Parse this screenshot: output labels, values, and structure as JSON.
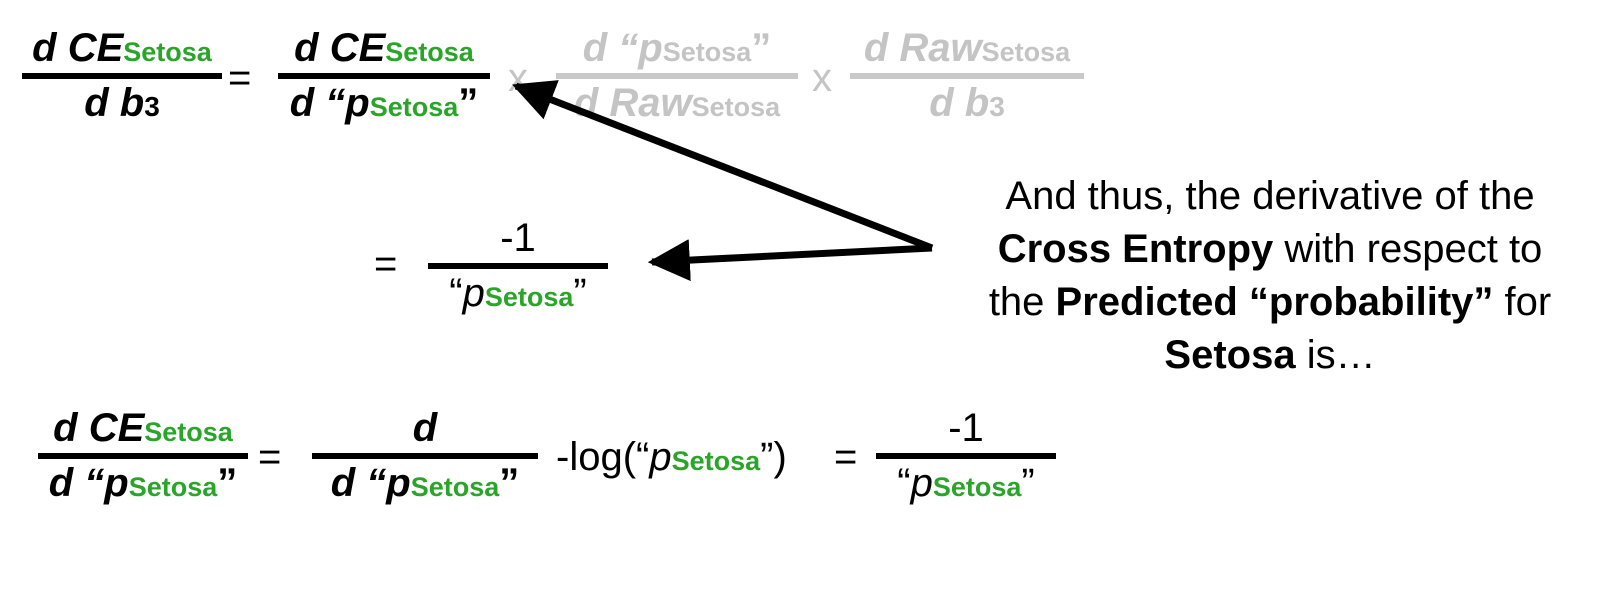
{
  "top_equation": {
    "lhs_num": "d CE",
    "lhs_num_sub": "Setosa",
    "lhs_den": "d b",
    "lhs_den_sub": "3",
    "equals": "=",
    "t1_num": "d CE",
    "t1_num_sub": "Setosa",
    "t1_den_pre": "d “",
    "t1_den_p": "p",
    "t1_den_sub": "Setosa",
    "t1_den_post": "”",
    "times1": "x",
    "t2_num_pre": "d “",
    "t2_num_p": "p",
    "t2_num_sub": "Setosa",
    "t2_num_post": "”",
    "t2_den": "d Raw",
    "t2_den_sub": "Setosa",
    "times2": "x",
    "t3_num": "d Raw",
    "t3_num_sub": "Setosa",
    "t3_den": "d b",
    "t3_den_sub": "3"
  },
  "middle_result": {
    "equals": "=",
    "num": "-1",
    "den_pre": "“",
    "den_p": "p",
    "den_sub": "Setosa",
    "den_post": "”"
  },
  "explanation": {
    "line1": "And thus, the derivative of the",
    "line2_bold": "Cross Entropy",
    "line2_rest": " with respect to",
    "line3_start": "the ",
    "line3_bold": "Predicted “probability”",
    "line3_end": " for",
    "line4_bold": "Setosa",
    "line4_rest": " is…"
  },
  "bottom_equation": {
    "lhs_num": "d CE",
    "lhs_num_sub": "Setosa",
    "lhs_den_pre": "d “",
    "lhs_den_p": "p",
    "lhs_den_sub": "Setosa",
    "lhs_den_post": "”",
    "equals1": "=",
    "mid_num": "d",
    "mid_den_pre": "d “",
    "mid_den_p": "p",
    "mid_den_sub": "Setosa",
    "mid_den_post": "”",
    "log_pre": "-log(“",
    "log_p": "p",
    "log_sub": "Setosa",
    "log_post": "”)",
    "equals2": "=",
    "res_num": "-1",
    "res_den_pre": "“",
    "res_den_p": "p",
    "res_den_sub": "Setosa",
    "res_den_post": "”"
  },
  "colors": {
    "green": "#2aa52a",
    "gray": "#c4c4c4",
    "black": "#000000"
  }
}
